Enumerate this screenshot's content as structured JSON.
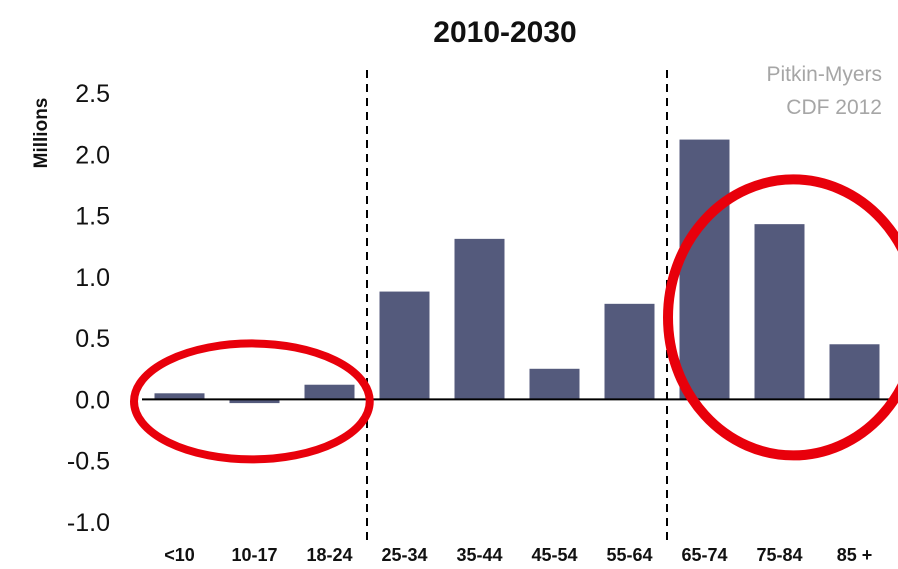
{
  "chart_data": {
    "type": "bar",
    "title": "2010-2030",
    "ylabel": "Millions",
    "xlabel": "",
    "categories": [
      "<10",
      "10-17",
      "18-24",
      "25-34",
      "35-44",
      "45-54",
      "55-64",
      "65-74",
      "75-84",
      "85 +"
    ],
    "values": [
      0.05,
      -0.03,
      0.12,
      0.88,
      1.31,
      0.25,
      0.78,
      2.12,
      1.43,
      0.45
    ],
    "yticks": [
      "2.5",
      "2.0",
      "1.5",
      "1.0",
      "0.5",
      "0.0",
      "-0.5",
      "-1.0"
    ],
    "ylim": [
      -1.0,
      2.5
    ],
    "grid": false,
    "legend": "none",
    "annotation": [
      "Pitkin-Myers",
      "CDF 2012"
    ],
    "bar_color": "#545a7c",
    "highlight_color": "#e8000b",
    "divider_after_categories": [
      "18-24",
      "55-64"
    ],
    "circled_groups": [
      [
        "<10",
        "10-17",
        "18-24"
      ],
      [
        "65-74",
        "75-84",
        "85 +"
      ]
    ]
  }
}
